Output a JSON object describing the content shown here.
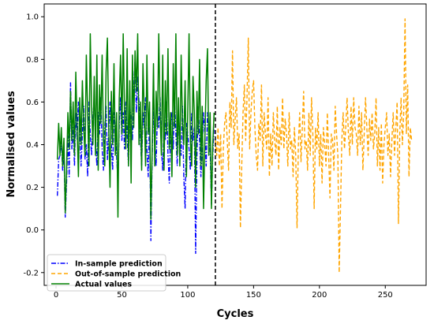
{
  "chart_data": {
    "type": "line",
    "xlabel": "Cycles",
    "ylabel": "Normalised values",
    "xlim": [
      -9,
      281
    ],
    "ylim": [
      -0.26,
      1.06
    ],
    "xticks": [
      0,
      50,
      100,
      150,
      200,
      250
    ],
    "yticks": [
      -0.2,
      0.0,
      0.2,
      0.4,
      0.6,
      0.8,
      1.0
    ],
    "grid": false,
    "legend_position": "lower-left",
    "split_marker": {
      "x": 121,
      "style": "dashed",
      "color": "#000000"
    },
    "series": [
      {
        "name": "In-sample prediction",
        "color": "#0000ff",
        "style": "dashdot",
        "x": [
          1,
          2,
          3,
          4,
          5,
          6,
          7,
          8,
          9,
          10,
          11,
          12,
          13,
          14,
          15,
          16,
          17,
          18,
          19,
          20,
          21,
          22,
          23,
          24,
          25,
          26,
          27,
          28,
          29,
          30,
          31,
          32,
          33,
          34,
          35,
          36,
          37,
          38,
          39,
          40,
          41,
          42,
          43,
          44,
          45,
          46,
          47,
          48,
          49,
          50,
          51,
          52,
          53,
          54,
          55,
          56,
          57,
          58,
          59,
          60,
          61,
          62,
          63,
          64,
          65,
          66,
          67,
          68,
          69,
          70,
          71,
          72,
          73,
          74,
          75,
          76,
          77,
          78,
          79,
          80,
          81,
          82,
          83,
          84,
          85,
          86,
          87,
          88,
          89,
          90,
          91,
          92,
          93,
          94,
          95,
          96,
          97,
          98,
          99,
          100,
          101,
          102,
          103,
          104,
          105,
          106,
          107,
          108,
          109,
          110,
          111,
          112,
          113,
          114,
          115,
          116,
          117,
          118,
          119,
          120
        ],
        "values": [
          0.16,
          0.33,
          0.35,
          0.42,
          0.28,
          0.38,
          0.06,
          0.22,
          0.44,
          0.25,
          0.69,
          0.38,
          0.48,
          0.3,
          0.55,
          0.42,
          0.6,
          0.48,
          0.3,
          0.45,
          0.58,
          0.33,
          0.4,
          0.25,
          0.6,
          0.45,
          0.35,
          0.52,
          0.62,
          0.42,
          0.3,
          0.55,
          0.45,
          0.62,
          0.38,
          0.28,
          0.48,
          0.58,
          0.33,
          0.45,
          0.6,
          0.4,
          0.28,
          0.55,
          0.48,
          0.35,
          0.22,
          0.5,
          0.62,
          0.42,
          0.55,
          0.38,
          0.6,
          0.45,
          0.3,
          0.58,
          0.52,
          0.42,
          0.65,
          0.8,
          0.55,
          0.72,
          0.6,
          0.45,
          0.3,
          0.55,
          0.48,
          0.62,
          0.38,
          0.25,
          0.55,
          -0.05,
          0.35,
          0.58,
          0.42,
          0.3,
          0.55,
          0.48,
          0.62,
          0.38,
          0.28,
          0.5,
          0.42,
          0.6,
          0.35,
          0.22,
          0.48,
          0.55,
          0.38,
          0.62,
          0.45,
          0.3,
          0.55,
          0.42,
          0.35,
          0.58,
          0.25,
          0.1,
          0.5,
          0.45,
          0.38,
          0.28,
          0.55,
          0.42,
          0.48,
          -0.11,
          0.35,
          0.58,
          0.42,
          0.25,
          0.38,
          0.55,
          0.45,
          0.3,
          0.55,
          0.48,
          0.38,
          0.12,
          0.35,
          0.48
        ]
      },
      {
        "name": "Out-of-sample prediction",
        "color": "#ffa500",
        "style": "dashed",
        "x": [
          121,
          122,
          123,
          124,
          125,
          126,
          127,
          128,
          129,
          130,
          131,
          132,
          133,
          134,
          135,
          136,
          137,
          138,
          139,
          140,
          141,
          142,
          143,
          144,
          145,
          146,
          147,
          148,
          149,
          150,
          151,
          152,
          153,
          154,
          155,
          156,
          157,
          158,
          159,
          160,
          161,
          162,
          163,
          164,
          165,
          166,
          167,
          168,
          169,
          170,
          171,
          172,
          173,
          174,
          175,
          176,
          177,
          178,
          179,
          180,
          181,
          182,
          183,
          184,
          185,
          186,
          187,
          188,
          189,
          190,
          191,
          192,
          193,
          194,
          195,
          196,
          197,
          198,
          199,
          200,
          201,
          202,
          203,
          204,
          205,
          206,
          207,
          208,
          209,
          210,
          211,
          212,
          213,
          214,
          215,
          216,
          217,
          218,
          219,
          220,
          221,
          222,
          223,
          224,
          225,
          226,
          227,
          228,
          229,
          230,
          231,
          232,
          233,
          234,
          235,
          236,
          237,
          238,
          239,
          240,
          241,
          242,
          243,
          244,
          245,
          246,
          247,
          248,
          249,
          250,
          251,
          252,
          253,
          254,
          255,
          256,
          257,
          258,
          259,
          260,
          261,
          262,
          263,
          264,
          265,
          266,
          267,
          268,
          269,
          270
        ],
        "values": [
          0.42,
          0.35,
          0.48,
          0.3,
          0.45,
          0.1,
          0.38,
          0.5,
          0.55,
          0.42,
          0.28,
          0.6,
          0.48,
          0.84,
          0.4,
          0.52,
          0.62,
          0.38,
          0.45,
          0.01,
          0.3,
          0.55,
          0.68,
          0.42,
          0.62,
          0.9,
          0.38,
          0.55,
          0.65,
          0.7,
          0.48,
          0.35,
          0.28,
          0.5,
          0.42,
          0.68,
          0.3,
          0.55,
          0.45,
          0.38,
          0.62,
          0.25,
          0.45,
          0.3,
          0.55,
          0.42,
          0.35,
          0.58,
          0.28,
          0.48,
          0.4,
          0.62,
          0.38,
          0.52,
          0.45,
          0.3,
          0.55,
          0.38,
          0.42,
          0.25,
          0.48,
          0.35,
          0.01,
          0.4,
          0.55,
          0.32,
          0.48,
          0.65,
          0.38,
          0.42,
          0.28,
          0.55,
          0.35,
          0.62,
          0.45,
          0.1,
          0.48,
          0.38,
          0.55,
          0.3,
          0.45,
          0.22,
          0.48,
          0.4,
          0.3,
          0.55,
          0.35,
          0.15,
          0.45,
          0.42,
          0.28,
          0.58,
          0.45,
          0.35,
          -0.2,
          0.1,
          0.42,
          0.55,
          0.38,
          0.48,
          0.62,
          0.45,
          0.35,
          0.58,
          0.4,
          0.62,
          0.48,
          0.45,
          0.35,
          0.58,
          0.4,
          0.55,
          0.28,
          0.45,
          0.62,
          0.48,
          0.35,
          0.52,
          0.42,
          0.55,
          0.38,
          0.45,
          0.62,
          0.3,
          0.48,
          0.28,
          0.5,
          0.22,
          0.4,
          0.48,
          0.55,
          0.35,
          0.45,
          0.25,
          0.42,
          0.55,
          0.35,
          0.48,
          0.6,
          0.03,
          0.45,
          0.62,
          0.4,
          0.55,
          0.99,
          0.45,
          0.68,
          0.25,
          0.48,
          0.42
        ]
      },
      {
        "name": "Actual values",
        "color": "#008000",
        "style": "solid",
        "x": [
          1,
          2,
          3,
          4,
          5,
          6,
          7,
          8,
          9,
          10,
          11,
          12,
          13,
          14,
          15,
          16,
          17,
          18,
          19,
          20,
          21,
          22,
          23,
          24,
          25,
          26,
          27,
          28,
          29,
          30,
          31,
          32,
          33,
          34,
          35,
          36,
          37,
          38,
          39,
          40,
          41,
          42,
          43,
          44,
          45,
          46,
          47,
          48,
          49,
          50,
          51,
          52,
          53,
          54,
          55,
          56,
          57,
          58,
          59,
          60,
          61,
          62,
          63,
          64,
          65,
          66,
          67,
          68,
          69,
          70,
          71,
          72,
          73,
          74,
          75,
          76,
          77,
          78,
          79,
          80,
          81,
          82,
          83,
          84,
          85,
          86,
          87,
          88,
          89,
          90,
          91,
          92,
          93,
          94,
          95,
          96,
          97,
          98,
          99,
          100,
          101,
          102,
          103,
          104,
          105,
          106,
          107,
          108,
          109,
          110,
          111,
          112,
          113,
          114,
          115,
          116,
          117,
          118,
          119,
          120
        ],
        "values": [
          0.33,
          0.5,
          0.35,
          0.48,
          0.3,
          0.43,
          0.08,
          0.28,
          0.55,
          0.38,
          0.65,
          0.42,
          0.6,
          0.35,
          0.74,
          0.48,
          0.25,
          0.62,
          0.4,
          0.7,
          0.48,
          0.35,
          0.82,
          0.55,
          0.3,
          0.92,
          0.58,
          0.4,
          0.72,
          0.35,
          0.82,
          0.28,
          0.68,
          0.5,
          0.82,
          0.42,
          0.3,
          0.74,
          0.9,
          0.48,
          0.2,
          0.65,
          0.4,
          0.78,
          0.35,
          0.55,
          0.06,
          0.62,
          0.82,
          0.45,
          0.92,
          0.55,
          0.38,
          0.85,
          0.3,
          0.7,
          0.22,
          0.82,
          0.48,
          0.84,
          0.65,
          0.92,
          0.4,
          0.6,
          0.28,
          0.78,
          0.55,
          0.3,
          0.82,
          0.45,
          0.6,
          0.05,
          0.38,
          0.78,
          0.3,
          0.65,
          0.48,
          0.92,
          0.55,
          0.35,
          0.82,
          0.28,
          0.7,
          0.45,
          0.85,
          0.38,
          0.55,
          0.25,
          0.78,
          0.48,
          0.92,
          0.35,
          0.62,
          0.3,
          0.82,
          0.5,
          0.4,
          0.7,
          0.25,
          0.55,
          0.92,
          0.42,
          0.3,
          0.72,
          0.55,
          0.2,
          0.65,
          0.45,
          0.8,
          0.3,
          0.58,
          0.1,
          0.42,
          0.7,
          0.85,
          0.35,
          0.55,
          0.1,
          0.4,
          0.55
        ]
      }
    ]
  }
}
